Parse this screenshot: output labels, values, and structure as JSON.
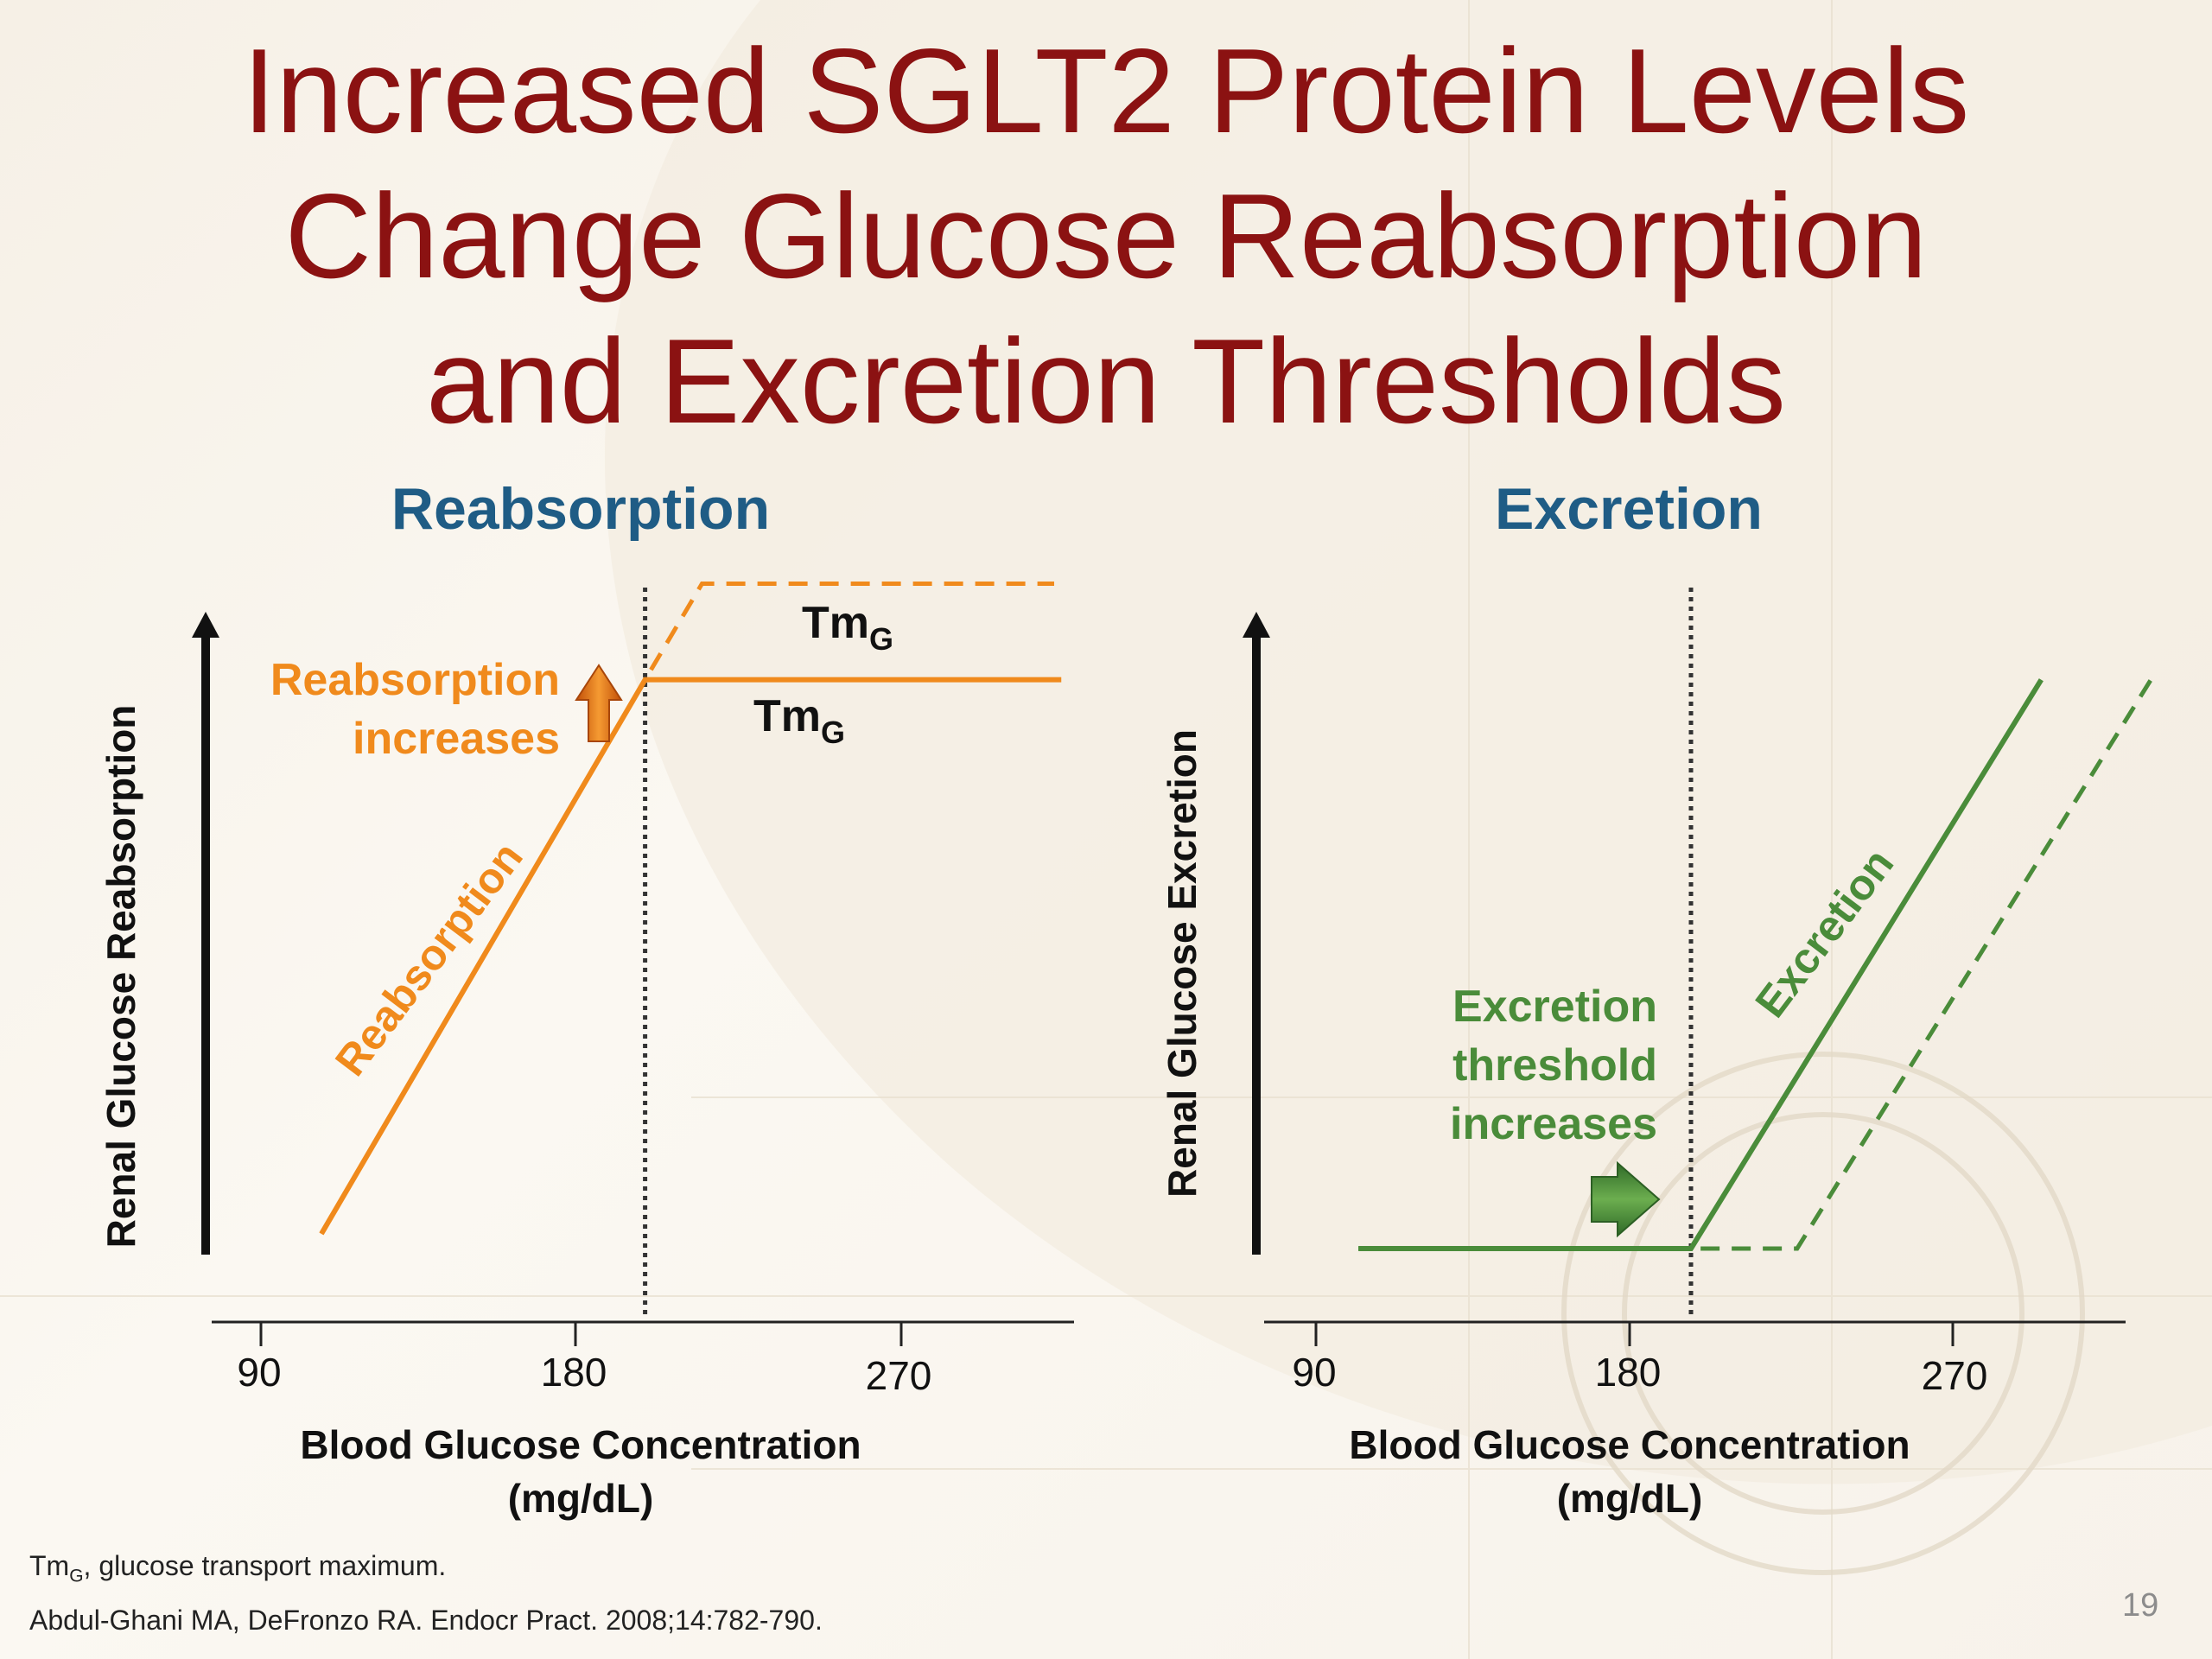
{
  "slide": {
    "title_lines": [
      "Increased SGLT2 Protein Levels",
      "Change Glucose Reabsorption",
      "and Excretion Thresholds"
    ],
    "footnote_main": "Tm",
    "footnote_sub": "G",
    "footnote_rest": ", glucose transport maximum.",
    "citation": "Abdul-Ghani MA, DeFronzo RA. Endocr Pract. 2008;14:782-790.",
    "page_number": "19"
  },
  "colors": {
    "title": "#8b1212",
    "panel_title": "#1f5c85",
    "reabsorption": "#f08a1c",
    "excretion": "#4a8c3a",
    "axis": "#111111"
  },
  "chart_data": [
    {
      "type": "line",
      "title": "Reabsorption",
      "xlabel": "Blood Glucose Concentration",
      "xlabel_unit": "(mg/dL)",
      "ylabel": "Renal Glucose Reabsorption",
      "x_ticks": [
        "90",
        "180",
        "270"
      ],
      "threshold_x": 198,
      "series": [
        {
          "style": "solid",
          "points": [
            [
              107,
              0.02
            ],
            [
              198,
              0.77
            ],
            [
              315,
              0.77
            ]
          ]
        },
        {
          "style": "dashed",
          "points": [
            [
              107,
              0.02
            ],
            [
              198,
              0.77
            ],
            [
              214,
              0.9
            ],
            [
              313,
              0.9
            ]
          ]
        }
      ],
      "annotations": {
        "tm_upper": {
          "main": "Tm",
          "sub": "G"
        },
        "tm_lower": {
          "main": "Tm",
          "sub": "G"
        },
        "increase_line1": "Reabsorption",
        "increase_line2": "increases",
        "curve_label": "Reabsorption"
      }
    },
    {
      "type": "line",
      "title": "Excretion",
      "xlabel": "Blood Glucose Concentration",
      "xlabel_unit": "(mg/dL)",
      "ylabel": "Renal Glucose Excretion",
      "x_ticks": [
        "90",
        "180",
        "270"
      ],
      "threshold_x": 196,
      "series": [
        {
          "style": "solid",
          "points": [
            [
              102,
              0.0
            ],
            [
              196,
              0.0
            ],
            [
              295,
              0.77
            ]
          ]
        },
        {
          "style": "dashed",
          "points": [
            [
              102,
              0.0
            ],
            [
              226,
              0.0
            ],
            [
              326,
              0.77
            ]
          ]
        }
      ],
      "annotations": {
        "threshold_line1": "Excretion",
        "threshold_line2": "threshold",
        "threshold_line3": "increases",
        "curve_label": "Excretion"
      }
    }
  ]
}
